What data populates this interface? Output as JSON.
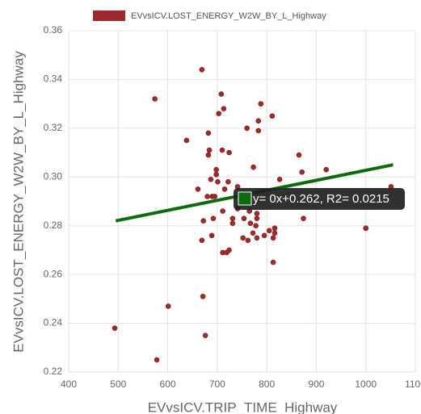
{
  "chart_data": {
    "type": "scatter",
    "series": [
      {
        "name": "EVvsICV.LOST_ENERGY_W2W_BY_L_Highway",
        "color": "#9e2a2b",
        "x": [
          669,
          574,
          638,
          708,
          713,
          703,
          682,
          684,
          682,
          710,
          724,
          760,
          788,
          783,
          783,
          811,
          773,
          687,
          698,
          698,
          701,
          661,
          715,
          722,
          680,
          690,
          695,
          741,
          826,
          871,
          865,
          920,
          711,
          672,
          692,
          731,
          731,
          741,
          754,
          765,
          767,
          780,
          780,
          778,
          772,
          780,
          795,
          805,
          816,
          816,
          813,
          752,
          762,
          689,
          669,
          711,
          719,
          724,
          813,
          874,
          1000,
          601,
          493,
          671,
          676,
          578,
          1051
        ],
        "values": [
          0.344,
          0.332,
          0.315,
          0.334,
          0.328,
          0.326,
          0.318,
          0.311,
          0.309,
          0.311,
          0.31,
          0.32,
          0.33,
          0.323,
          0.319,
          0.325,
          0.304,
          0.299,
          0.303,
          0.301,
          0.298,
          0.295,
          0.295,
          0.298,
          0.292,
          0.292,
          0.292,
          0.296,
          0.299,
          0.302,
          0.309,
          0.303,
          0.286,
          0.282,
          0.283,
          0.283,
          0.281,
          0.287,
          0.283,
          0.286,
          0.281,
          0.285,
          0.283,
          0.28,
          0.277,
          0.275,
          0.276,
          0.278,
          0.279,
          0.277,
          0.275,
          0.275,
          0.274,
          0.276,
          0.274,
          0.269,
          0.269,
          0.27,
          0.265,
          0.283,
          0.279,
          0.247,
          0.238,
          0.251,
          0.235,
          0.225,
          0.296
        ]
      }
    ],
    "trendline": {
      "color": "#0d6b0d",
      "x": [
        495,
        1055
      ],
      "values": [
        0.282,
        0.305
      ]
    },
    "tooltip": "y= 0x+0.262, R2= 0.0215",
    "xlabel": "EVvsICV.TRIP_TIME_Highway",
    "ylabel": "EVvsICV.LOST_ENERGY_W2W_BY_L_Highway",
    "xlim": [
      400,
      1100
    ],
    "xticks": [
      400,
      500,
      600,
      700,
      800,
      900,
      1000,
      1100
    ],
    "ylim": [
      0.22,
      0.36
    ],
    "yticks": [
      0.22,
      0.24,
      0.26,
      0.28,
      {
        "value": 0.3,
        "label": "0.30"
      },
      0.32,
      0.34,
      0.36
    ],
    "grid": true
  }
}
